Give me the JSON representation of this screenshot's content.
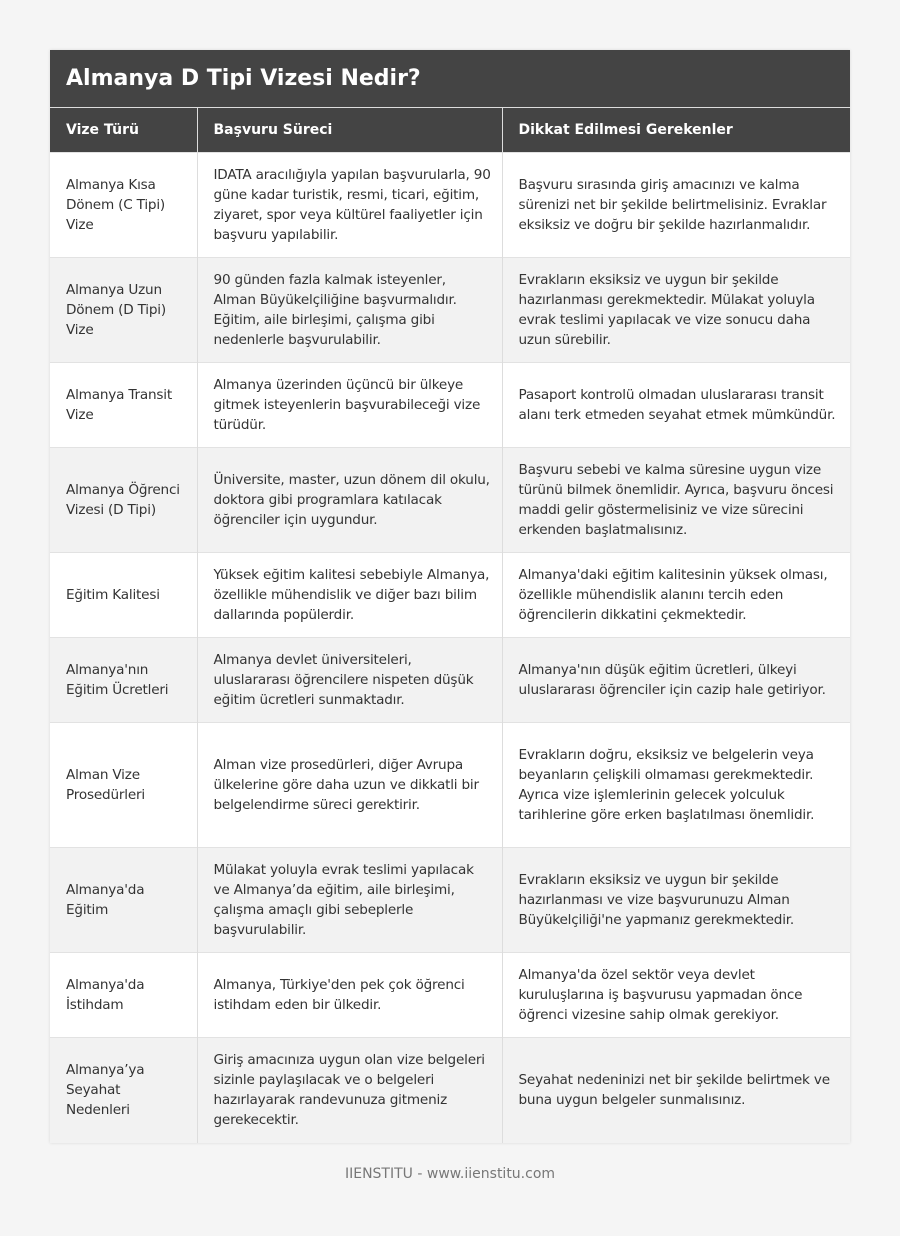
{
  "title": "Almanya D Tipi Vizesi Nedir?",
  "columns": [
    "Vize Türü",
    "Başvuru Süreci",
    "Dikkat Edilmesi Gerekenler"
  ],
  "rows": [
    [
      "Almanya Kısa Dönem (C Tipi) Vize",
      "IDATA aracılığıyla yapılan başvurularla, 90 güne kadar turistik, resmi, ticari, eğitim, ziyaret, spor veya kültürel faaliyetler için başvuru yapılabilir.",
      "Başvuru sırasında giriş amacınızı ve kalma sürenizi net bir şekilde belirtmelisiniz. Evraklar eksiksiz ve doğru bir şekilde hazırlanmalıdır."
    ],
    [
      "Almanya Uzun Dönem (D Tipi) Vize",
      "90 günden fazla kalmak isteyenler, Alman Büyükelçiliğine başvurmalıdır. Eğitim, aile birleşimi, çalışma gibi nedenlerle başvurulabilir.",
      "Evrakların eksiksiz ve uygun bir şekilde hazırlanması gerekmektedir. Mülakat yoluyla evrak teslimi yapılacak ve vize sonucu daha uzun sürebilir."
    ],
    [
      "Almanya Transit Vize",
      "Almanya üzerinden üçüncü bir ülkeye gitmek isteyenlerin başvurabileceği vize türüdür.",
      "Pasaport kontrolü olmadan uluslararası transit alanı terk etmeden seyahat etmek mümkündür."
    ],
    [
      "Almanya Öğrenci Vizesi (D Tipi)",
      "Üniversite, master, uzun dönem dil okulu, doktora gibi programlara katılacak öğrenciler için uygundur.",
      "Başvuru sebebi ve kalma süresine uygun vize türünü bilmek önemlidir. Ayrıca, başvuru öncesi maddi gelir göstermelisiniz ve vize sürecini erkenden başlatmalısınız."
    ],
    [
      "Eğitim Kalitesi",
      "Yüksek eğitim kalitesi sebebiyle Almanya, özellikle mühendislik ve diğer bazı bilim dallarında popülerdir.",
      "Almanya'daki eğitim kalitesinin yüksek olması, özellikle mühendislik alanını tercih eden öğrencilerin dikkatini çekmektedir."
    ],
    [
      "Almanya'nın Eğitim Ücretleri",
      "Almanya devlet üniversiteleri, uluslararası öğrencilere nispeten düşük eğitim ücretleri sunmaktadır.",
      "Almanya'nın düşük eğitim ücretleri, ülkeyi uluslararası öğrenciler için cazip hale getiriyor."
    ],
    [
      "Alman Vize Prosedürleri",
      "Alman vize prosedürleri, diğer Avrupa ülkelerine göre daha uzun ve dikkatli bir belgelendirme süreci gerektirir.",
      "Evrakların doğru, eksiksiz ve belgelerin veya beyanların çelişkili olmaması gerekmektedir. Ayrıca vize işlemlerinin gelecek yolculuk tarihlerine göre erken başlatılması önemlidir."
    ],
    [
      "Almanya'da Eğitim",
      "Mülakat yoluyla evrak teslimi yapılacak ve Almanya’da eğitim, aile birleşimi, çalışma amaçlı gibi sebeplerle başvurulabilir.",
      "Evrakların eksiksiz ve uygun bir şekilde hazırlanması ve vize başvurunuzu Alman Büyükelçiliği'ne yapmanız gerekmektedir."
    ],
    [
      "Almanya'da İstihdam",
      "Almanya, Türkiye'den pek çok öğrenci istihdam eden bir ülkedir.",
      "Almanya'da özel sektör veya devlet kuruluşlarına iş başvurusu yapmadan önce öğrenci vizesine sahip olmak gerekiyor."
    ],
    [
      "Almanya’ya Seyahat Nedenleri",
      "Giriş amacınıza uygun olan vize belgeleri sizinle paylaşılacak ve o belgeleri hazırlayarak randevunuza gitmeniz gerekecektir.",
      "Seyahat nedeninizi net bir şekilde belirtmek ve buna uygun belgeler sunmalısınız."
    ]
  ],
  "footer": "IIENSTITU - www.iienstitu.com"
}
